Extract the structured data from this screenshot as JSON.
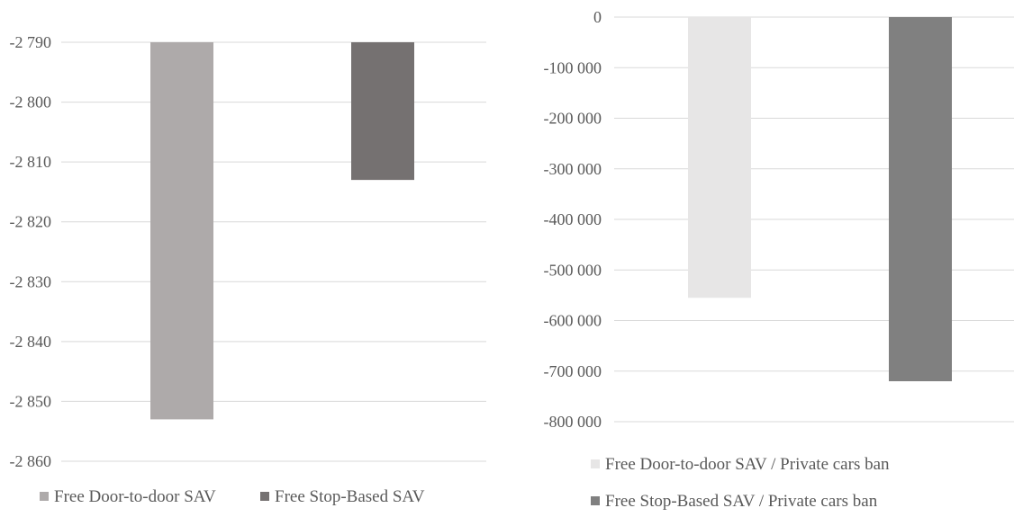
{
  "chart_data": [
    {
      "type": "bar",
      "title": "",
      "xlabel": "",
      "ylabel": "",
      "ylim": [
        -2860,
        -2790
      ],
      "yticks": [
        -2790,
        -2800,
        -2810,
        -2820,
        -2830,
        -2840,
        -2850,
        -2860
      ],
      "ytick_labels": [
        "-2 790",
        "-2 800",
        "-2 810",
        "-2 820",
        "-2 830",
        "-2 840",
        "-2 850",
        "-2 860"
      ],
      "grid": true,
      "legend_position": "bottom",
      "series": [
        {
          "name": "Free Door-to-door SAV",
          "values": [
            -2853
          ],
          "color": "#aeaaaa"
        },
        {
          "name": "Free Stop-Based SAV",
          "values": [
            -2813
          ],
          "color": "#757171"
        }
      ]
    },
    {
      "type": "bar",
      "title": "",
      "xlabel": "",
      "ylabel": "",
      "ylim": [
        -800000,
        0
      ],
      "yticks": [
        0,
        -100000,
        -200000,
        -300000,
        -400000,
        -500000,
        -600000,
        -700000,
        -800000
      ],
      "ytick_labels": [
        "0",
        "-100 000",
        "-200 000",
        "-300 000",
        "-400 000",
        "-500 000",
        "-600 000",
        "-700 000",
        "-800 000"
      ],
      "grid": true,
      "legend_position": "bottom",
      "series": [
        {
          "name": "Free Door-to-door SAV / Private cars ban",
          "values": [
            -555000
          ],
          "color": "#e7e6e6"
        },
        {
          "name": "Free Stop-Based SAV / Private cars ban",
          "values": [
            -720000
          ],
          "color": "#808080"
        }
      ]
    }
  ]
}
